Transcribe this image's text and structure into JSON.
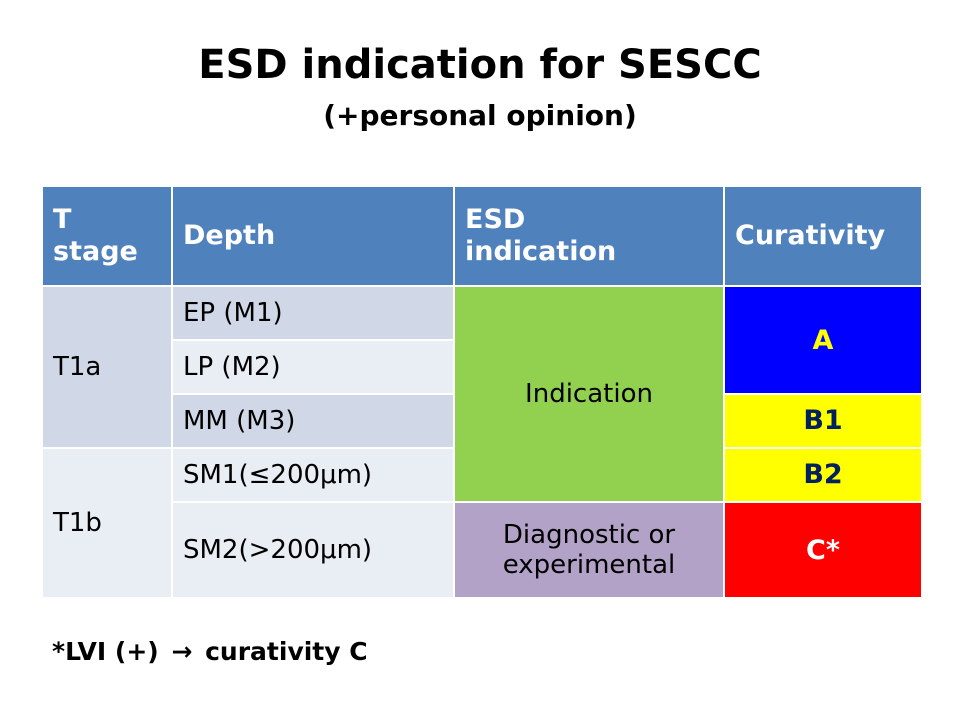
{
  "title": "ESD indication for SESCC",
  "subtitle": "(+personal opinion)",
  "table": {
    "headers": {
      "t_stage_line1": "T",
      "t_stage_line2": "stage",
      "depth": "Depth",
      "esd_line1": "ESD",
      "esd_line2": "indication",
      "curativity": "Curativity"
    },
    "t_stages": {
      "t1a": "T1a",
      "t1b": "T1b"
    },
    "depths": [
      "EP (M1)",
      "LP (M2)",
      "MM (M3)",
      "SM1(≤200μm)",
      "SM2(>200μm)"
    ],
    "esd": {
      "indication": "Indication",
      "diag_line1": "Diagnostic or",
      "diag_line2": "experimental"
    },
    "curativity": {
      "a": "A",
      "b1": "B1",
      "b2": "B2",
      "c": "C*"
    }
  },
  "footnote": {
    "left": "*LVI (+)",
    "arrow": "→",
    "right": "curativity C"
  },
  "colors": {
    "header": "#4f81bd",
    "indication": "#92d050",
    "diagnostic": "#b3a2c7",
    "curativity_a": "#0000ff",
    "curativity_b": "#ffff00",
    "curativity_c": "#ff0000"
  }
}
